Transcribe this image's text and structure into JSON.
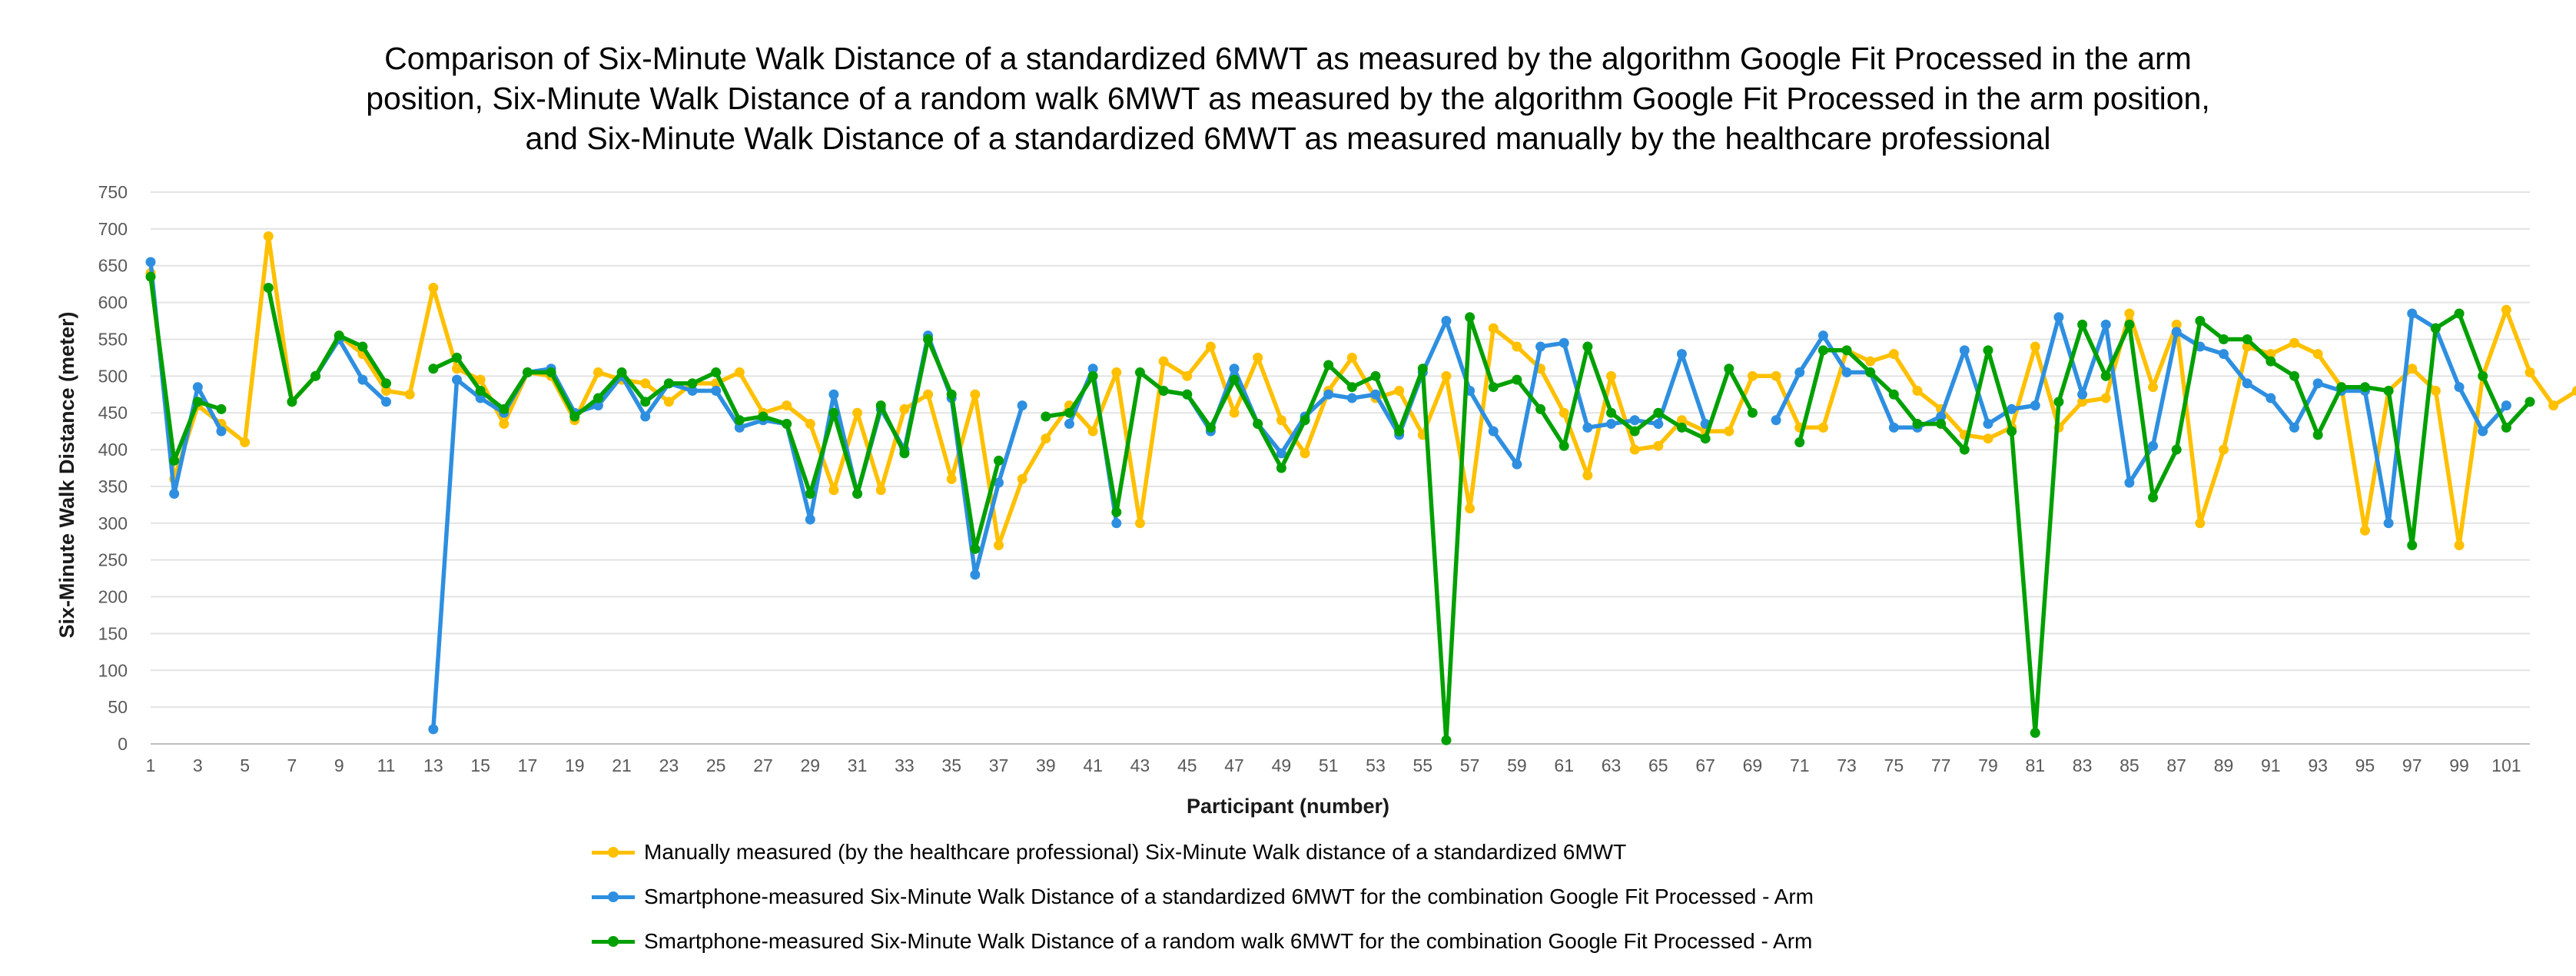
{
  "chart_data": {
    "type": "line",
    "title_lines": [
      "Comparison of Six-Minute Walk Distance of a standardized 6MWT as measured by the algorithm Google Fit Processed in the arm",
      "position, Six-Minute Walk Distance of a random walk 6MWT as measured by the algorithm Google Fit Processed in the arm position,",
      "and Six-Minute Walk Distance of a standardized 6MWT as measured manually by the healthcare professional"
    ],
    "xlabel": "Participant (number)",
    "ylabel": "Six-Minute Walk Distance (meter)",
    "ylim": [
      0,
      750
    ],
    "ytick_step": 50,
    "xlim": [
      1,
      102
    ],
    "xtick_labels": [
      "1",
      "3",
      "5",
      "7",
      "9",
      "11",
      "13",
      "15",
      "17",
      "19",
      "21",
      "23",
      "25",
      "27",
      "29",
      "31",
      "33",
      "35",
      "37",
      "39",
      "41",
      "43",
      "45",
      "47",
      "49",
      "51",
      "53",
      "55",
      "57",
      "59",
      "61",
      "63",
      "65",
      "67",
      "69",
      "71",
      "73",
      "75",
      "77",
      "79",
      "81",
      "83",
      "85",
      "87",
      "89",
      "91",
      "93",
      "95",
      "97",
      "99",
      "101"
    ],
    "grid": "horizontal",
    "legend_position": "bottom",
    "series": [
      {
        "name": "Manually measured (by the healthcare professional) Six-Minute Walk distance of a standardized 6MWT",
        "color": "#FFC000",
        "values": [
          640,
          360,
          460,
          435,
          410,
          690,
          465,
          500,
          555,
          530,
          480,
          475,
          620,
          510,
          495,
          435,
          505,
          500,
          440,
          505,
          495,
          490,
          465,
          490,
          490,
          505,
          450,
          460,
          435,
          345,
          450,
          345,
          455,
          475,
          360,
          475,
          270,
          360,
          415,
          460,
          425,
          505,
          300,
          520,
          500,
          540,
          450,
          525,
          440,
          395,
          480,
          525,
          470,
          480,
          420,
          500,
          320,
          565,
          540,
          510,
          450,
          365,
          500,
          400,
          405,
          440,
          425,
          425,
          500,
          500,
          430,
          430,
          535,
          520,
          530,
          480,
          455,
          420,
          415,
          430,
          540,
          430,
          465,
          470,
          585,
          485,
          570,
          300,
          400,
          540,
          530,
          545,
          530,
          485,
          290,
          480,
          510,
          480,
          270,
          500,
          590,
          505,
          460,
          480
        ]
      },
      {
        "name": "Smartphone-measured Six-Minute Walk Distance of a standardized 6MWT for the combination Google Fit Processed - Arm",
        "color": "#2E8FE0",
        "values": [
          655,
          340,
          485,
          425,
          null,
          null,
          null,
          500,
          550,
          495,
          465,
          null,
          20,
          495,
          470,
          450,
          505,
          510,
          450,
          460,
          500,
          445,
          490,
          480,
          480,
          430,
          440,
          435,
          305,
          475,
          340,
          455,
          400,
          555,
          470,
          230,
          355,
          460,
          null,
          435,
          510,
          300,
          null,
          480,
          475,
          425,
          510,
          435,
          395,
          445,
          475,
          470,
          475,
          420,
          505,
          575,
          480,
          425,
          380,
          540,
          545,
          430,
          435,
          440,
          435,
          530,
          435,
          null,
          null,
          440,
          505,
          555,
          505,
          505,
          430,
          430,
          445,
          535,
          435,
          455,
          460,
          580,
          475,
          570,
          355,
          405,
          560,
          540,
          530,
          490,
          470,
          430,
          490,
          480,
          480,
          300,
          585,
          565,
          485,
          425,
          460
        ]
      },
      {
        "name": "Smartphone-measured Six-Minute Walk Distance of a random walk 6MWT for the combination Google Fit Processed - Arm",
        "color": "#00A000",
        "values": [
          635,
          385,
          465,
          455,
          null,
          620,
          465,
          500,
          555,
          540,
          490,
          null,
          510,
          525,
          480,
          455,
          505,
          505,
          445,
          470,
          505,
          465,
          490,
          490,
          505,
          440,
          445,
          435,
          340,
          450,
          340,
          460,
          395,
          550,
          475,
          265,
          385,
          null,
          445,
          450,
          500,
          315,
          505,
          480,
          475,
          430,
          495,
          435,
          375,
          440,
          515,
          485,
          500,
          425,
          510,
          5,
          580,
          485,
          495,
          455,
          405,
          540,
          450,
          425,
          450,
          430,
          415,
          510,
          450,
          null,
          410,
          535,
          535,
          505,
          475,
          435,
          435,
          400,
          535,
          425,
          15,
          465,
          570,
          500,
          570,
          335,
          400,
          575,
          550,
          550,
          520,
          500,
          420,
          485,
          485,
          480,
          270,
          565,
          585,
          500,
          430,
          465
        ]
      }
    ]
  }
}
